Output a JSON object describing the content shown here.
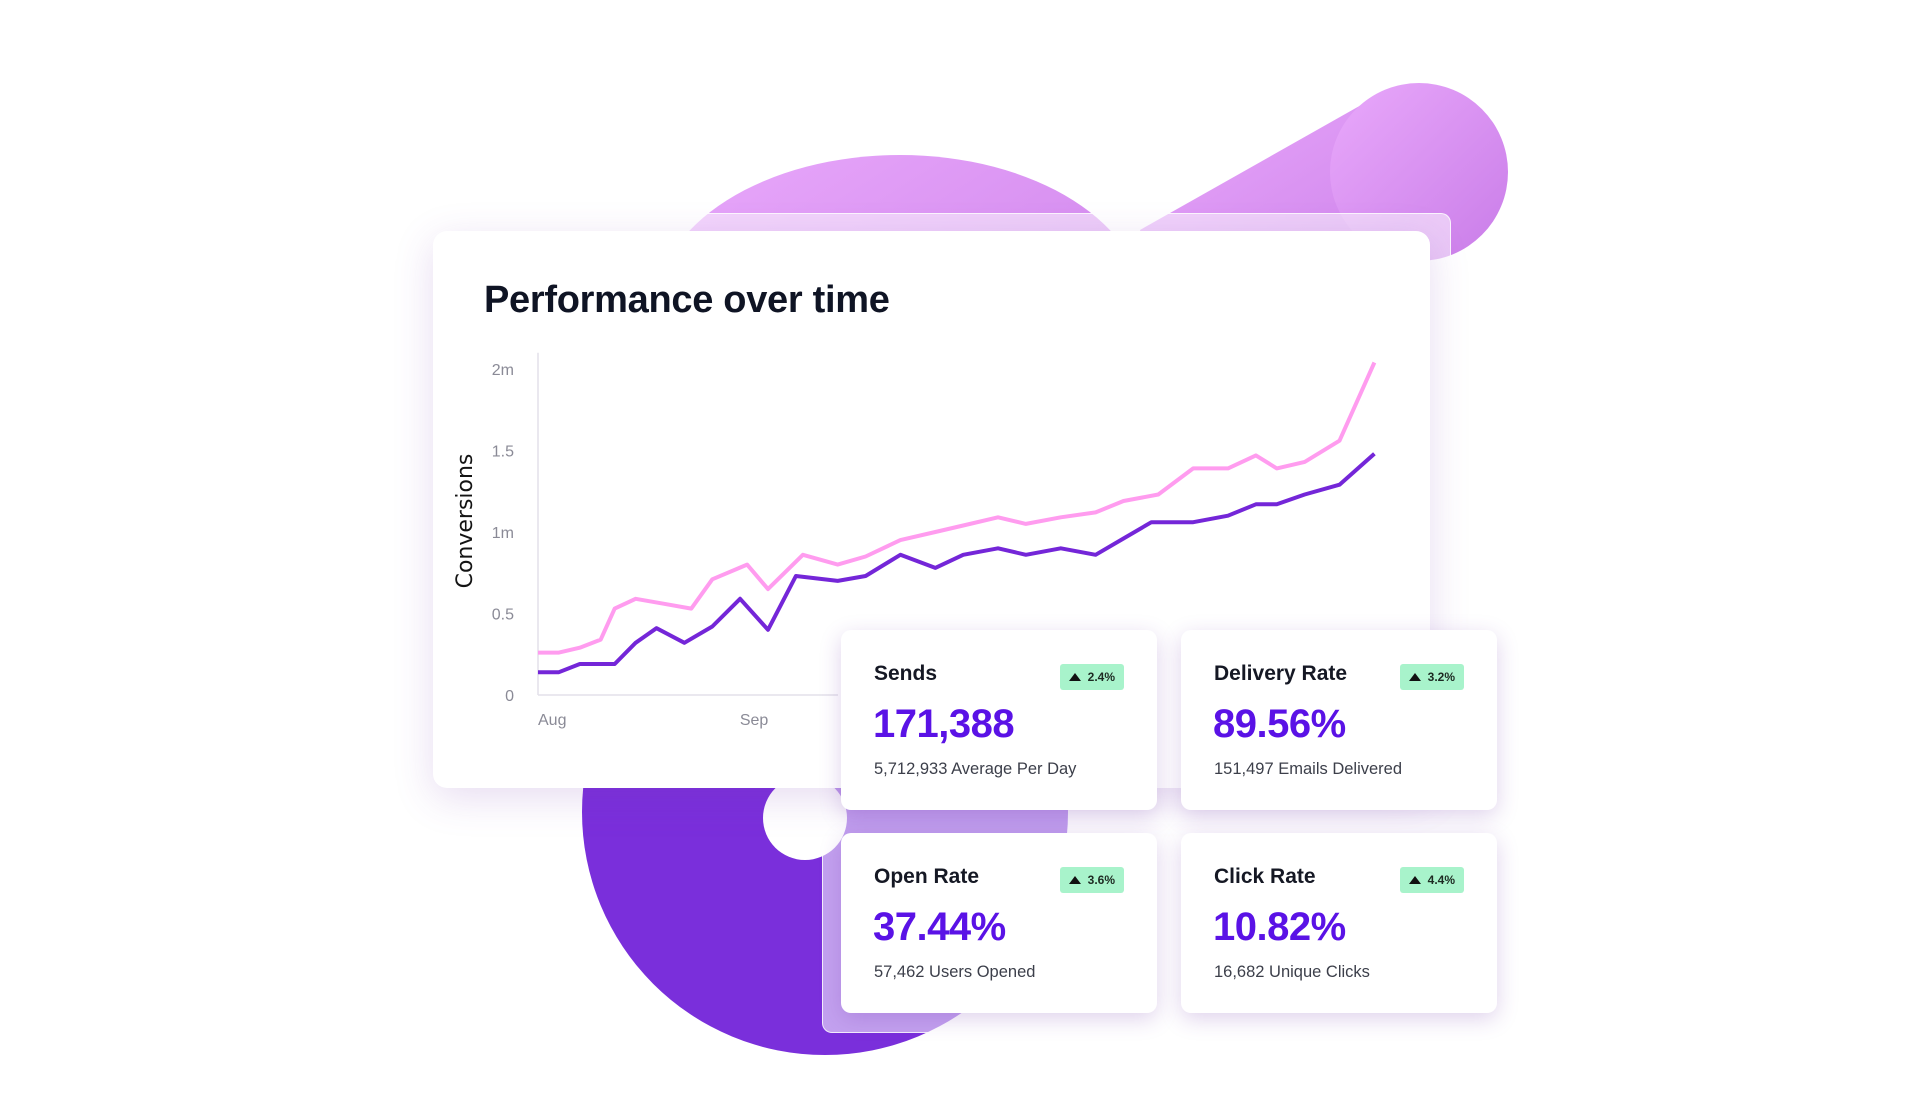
{
  "colors": {
    "pink_series": "#ff9cef",
    "purple_series": "#7426d8",
    "accent_value": "#5a12e6",
    "badge_bg": "#a8f3cb",
    "blob_pink": "#dc98f5",
    "blob_purple": "#7a2fdb"
  },
  "chart": {
    "title": "Performance over time"
  },
  "chart_data": {
    "type": "line",
    "title": "Performance over time",
    "ylabel": "Conversions",
    "xlabel": "",
    "yticks": [
      "0",
      "0.5",
      "1m",
      "1.5",
      "2m"
    ],
    "ytick_values": [
      0,
      0.5,
      1,
      1.5,
      2
    ],
    "xticks": [
      "Aug",
      "Sep"
    ],
    "xtick_dates": [
      "Aug 1",
      "Sep 1"
    ],
    "ylim": [
      0,
      2
    ],
    "grid": false,
    "series": [
      {
        "color": "#ff9cef",
        "points": [
          [
            "Aug 1",
            0.26
          ],
          [
            "Aug 4",
            0.26
          ],
          [
            "Aug 7",
            0.29
          ],
          [
            "Aug 10",
            0.34
          ],
          [
            "Aug 12",
            0.53
          ],
          [
            "Aug 15",
            0.59
          ],
          [
            "Aug 19",
            0.56
          ],
          [
            "Aug 23",
            0.53
          ],
          [
            "Aug 26",
            0.71
          ],
          [
            "Aug 31",
            0.8
          ],
          [
            "Sep 3",
            0.65
          ],
          [
            "Sep 8",
            0.86
          ],
          [
            "Sep 13",
            0.8
          ],
          [
            "Sep 17",
            0.85
          ],
          [
            "Sep 22",
            0.95
          ],
          [
            "Sep 27",
            1.0
          ],
          [
            "Oct 1",
            1.04
          ],
          [
            "Oct 6",
            1.09
          ],
          [
            "Oct 10",
            1.05
          ],
          [
            "Oct 15",
            1.09
          ],
          [
            "Oct 20",
            1.12
          ],
          [
            "Oct 24",
            1.19
          ],
          [
            "Oct 29",
            1.23
          ],
          [
            "Nov 3",
            1.39
          ],
          [
            "Nov 8",
            1.39
          ],
          [
            "Nov 12",
            1.47
          ],
          [
            "Nov 15",
            1.39
          ],
          [
            "Nov 19",
            1.43
          ],
          [
            "Nov 24",
            1.56
          ],
          [
            "Nov 29",
            2.04
          ]
        ]
      },
      {
        "color": "#7426d8",
        "points": [
          [
            "Aug 1",
            0.14
          ],
          [
            "Aug 4",
            0.14
          ],
          [
            "Aug 7",
            0.19
          ],
          [
            "Aug 12",
            0.19
          ],
          [
            "Aug 15",
            0.32
          ],
          [
            "Aug 18",
            0.41
          ],
          [
            "Aug 22",
            0.32
          ],
          [
            "Aug 26",
            0.42
          ],
          [
            "Aug 30",
            0.59
          ],
          [
            "Sep 3",
            0.4
          ],
          [
            "Sep 7",
            0.73
          ],
          [
            "Sep 13",
            0.7
          ],
          [
            "Sep 17",
            0.73
          ],
          [
            "Sep 22",
            0.86
          ],
          [
            "Sep 27",
            0.78
          ],
          [
            "Oct 1",
            0.86
          ],
          [
            "Oct 6",
            0.9
          ],
          [
            "Oct 10",
            0.86
          ],
          [
            "Oct 15",
            0.9
          ],
          [
            "Oct 20",
            0.86
          ],
          [
            "Oct 24",
            0.96
          ],
          [
            "Oct 28",
            1.06
          ],
          [
            "Nov 3",
            1.06
          ],
          [
            "Nov 8",
            1.1
          ],
          [
            "Nov 12",
            1.17
          ],
          [
            "Nov 15",
            1.17
          ],
          [
            "Nov 19",
            1.23
          ],
          [
            "Nov 24",
            1.29
          ],
          [
            "Nov 29",
            1.48
          ]
        ]
      }
    ]
  },
  "stats": [
    {
      "title": "Sends",
      "change": "2.4%",
      "trend_icon": "triangle-up",
      "value": "171,388",
      "sub": "5,712,933 Average Per Day"
    },
    {
      "title": "Delivery Rate",
      "change": "3.2%",
      "trend_icon": "triangle-up",
      "value": "89.56%",
      "sub": "151,497 Emails Delivered"
    },
    {
      "title": "Open Rate",
      "change": "3.6%",
      "trend_icon": "triangle-up",
      "value": "37.44%",
      "sub": "57,462 Users Opened"
    },
    {
      "title": "Click Rate",
      "change": "4.4%",
      "trend_icon": "triangle-up",
      "value": "10.82%",
      "sub": "16,682 Unique Clicks"
    }
  ]
}
